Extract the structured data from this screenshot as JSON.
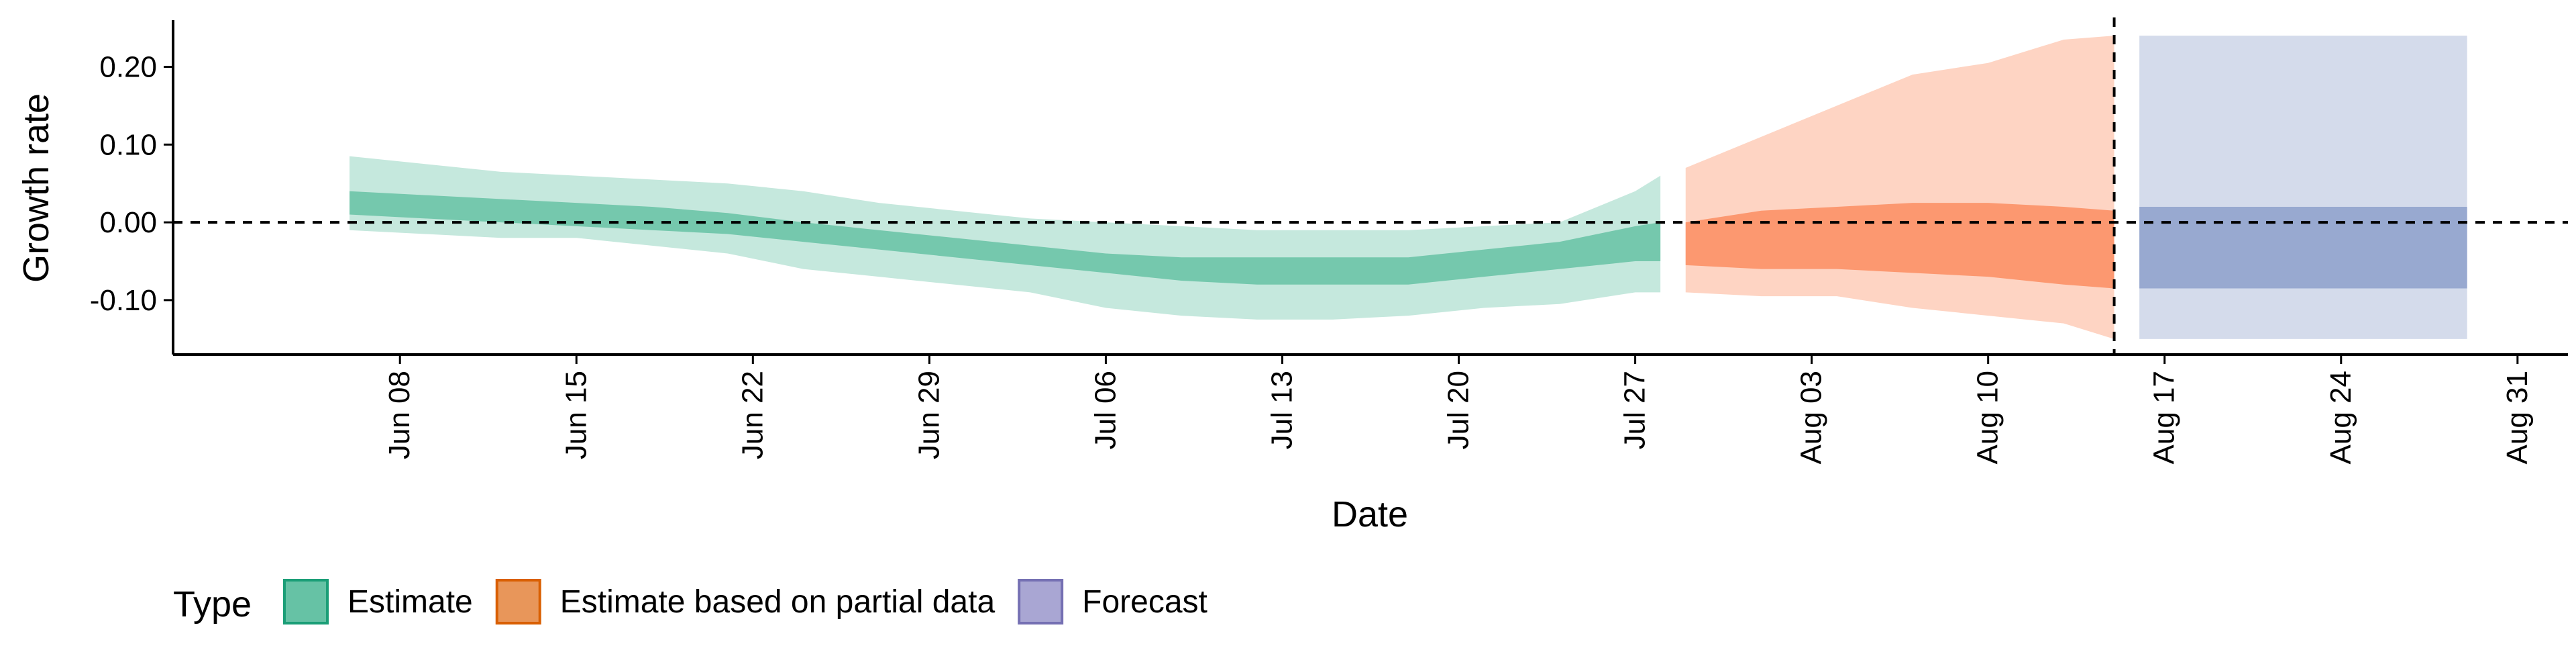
{
  "chart_data": {
    "type": "area",
    "xlabel": "Date",
    "ylabel": "Growth rate",
    "xlim": [
      "2020-05-30",
      "2020-09-02"
    ],
    "ylim": [
      -0.17,
      0.26
    ],
    "x_ticks": [
      "2020-06-08",
      "2020-06-15",
      "2020-06-22",
      "2020-06-29",
      "2020-07-06",
      "2020-07-13",
      "2020-07-20",
      "2020-07-27",
      "2020-08-03",
      "2020-08-10",
      "2020-08-17",
      "2020-08-24",
      "2020-08-31"
    ],
    "x_tick_labels": [
      "Jun 08",
      "Jun 15",
      "Jun 22",
      "Jun 29",
      "Jul 06",
      "Jul 13",
      "Jul 20",
      "Jul 27",
      "Aug 03",
      "Aug 10",
      "Aug 17",
      "Aug 24",
      "Aug 31"
    ],
    "y_ticks": [
      -0.1,
      0,
      0.1,
      0.2
    ],
    "y_tick_labels": [
      "-0.10",
      "0.00",
      "0.10",
      "0.20"
    ],
    "hline": 0,
    "vline": "2020-08-15",
    "grid": false,
    "legend": {
      "title": "Type",
      "position": "bottom-left",
      "entries": [
        "Estimate",
        "Estimate based on partial data",
        "Forecast"
      ]
    },
    "series": [
      {
        "name": "Estimate",
        "color": "#66c2a5",
        "x": [
          "2020-06-06",
          "2020-06-09",
          "2020-06-12",
          "2020-06-15",
          "2020-06-18",
          "2020-06-21",
          "2020-06-24",
          "2020-06-27",
          "2020-06-30",
          "2020-07-03",
          "2020-07-06",
          "2020-07-09",
          "2020-07-12",
          "2020-07-15",
          "2020-07-18",
          "2020-07-21",
          "2020-07-24",
          "2020-07-27",
          "2020-07-28"
        ],
        "lower_90": [
          -0.01,
          -0.015,
          -0.02,
          -0.02,
          -0.03,
          -0.04,
          -0.06,
          -0.07,
          -0.08,
          -0.09,
          -0.11,
          -0.12,
          -0.125,
          -0.125,
          -0.12,
          -0.11,
          -0.105,
          -0.09,
          -0.09
        ],
        "upper_90": [
          0.085,
          0.075,
          0.065,
          0.06,
          0.055,
          0.05,
          0.04,
          0.025,
          0.015,
          0.005,
          0.0,
          -0.005,
          -0.01,
          -0.01,
          -0.01,
          -0.005,
          0.0,
          0.04,
          0.06
        ],
        "lower_50": [
          0.01,
          0.005,
          0.0,
          -0.005,
          -0.01,
          -0.015,
          -0.025,
          -0.035,
          -0.045,
          -0.055,
          -0.065,
          -0.075,
          -0.08,
          -0.08,
          -0.08,
          -0.07,
          -0.06,
          -0.05,
          -0.05
        ],
        "upper_50": [
          0.04,
          0.035,
          0.03,
          0.025,
          0.02,
          0.012,
          0.0,
          -0.01,
          -0.02,
          -0.03,
          -0.04,
          -0.045,
          -0.045,
          -0.045,
          -0.045,
          -0.035,
          -0.025,
          -0.005,
          0.0
        ]
      },
      {
        "name": "Estimate based on partial data",
        "color": "#fc8d62",
        "x": [
          "2020-07-29",
          "2020-08-01",
          "2020-08-04",
          "2020-08-07",
          "2020-08-10",
          "2020-08-13",
          "2020-08-15"
        ],
        "lower_90": [
          -0.09,
          -0.095,
          -0.095,
          -0.11,
          -0.12,
          -0.13,
          -0.15
        ],
        "upper_90": [
          0.07,
          0.11,
          0.15,
          0.19,
          0.205,
          0.235,
          0.24
        ],
        "lower_50": [
          -0.055,
          -0.06,
          -0.06,
          -0.065,
          -0.07,
          -0.08,
          -0.085
        ],
        "upper_50": [
          0.0,
          0.015,
          0.02,
          0.025,
          0.025,
          0.02,
          0.015
        ]
      },
      {
        "name": "Forecast",
        "color": "#8da0cb",
        "x": [
          "2020-08-16",
          "2020-08-29"
        ],
        "lower_90": [
          -0.15,
          -0.15
        ],
        "upper_90": [
          0.24,
          0.24
        ],
        "lower_50": [
          -0.085,
          -0.085
        ],
        "upper_50": [
          0.02,
          0.02
        ]
      }
    ]
  },
  "legend_colors": {
    "Estimate": {
      "fill": "#66c2a5",
      "stroke": "#1b9e77"
    },
    "Estimate based on partial data": {
      "fill": "#e8965a",
      "stroke": "#d95f02"
    },
    "Forecast": {
      "fill": "#a9a6d3",
      "stroke": "#7570b3"
    }
  }
}
